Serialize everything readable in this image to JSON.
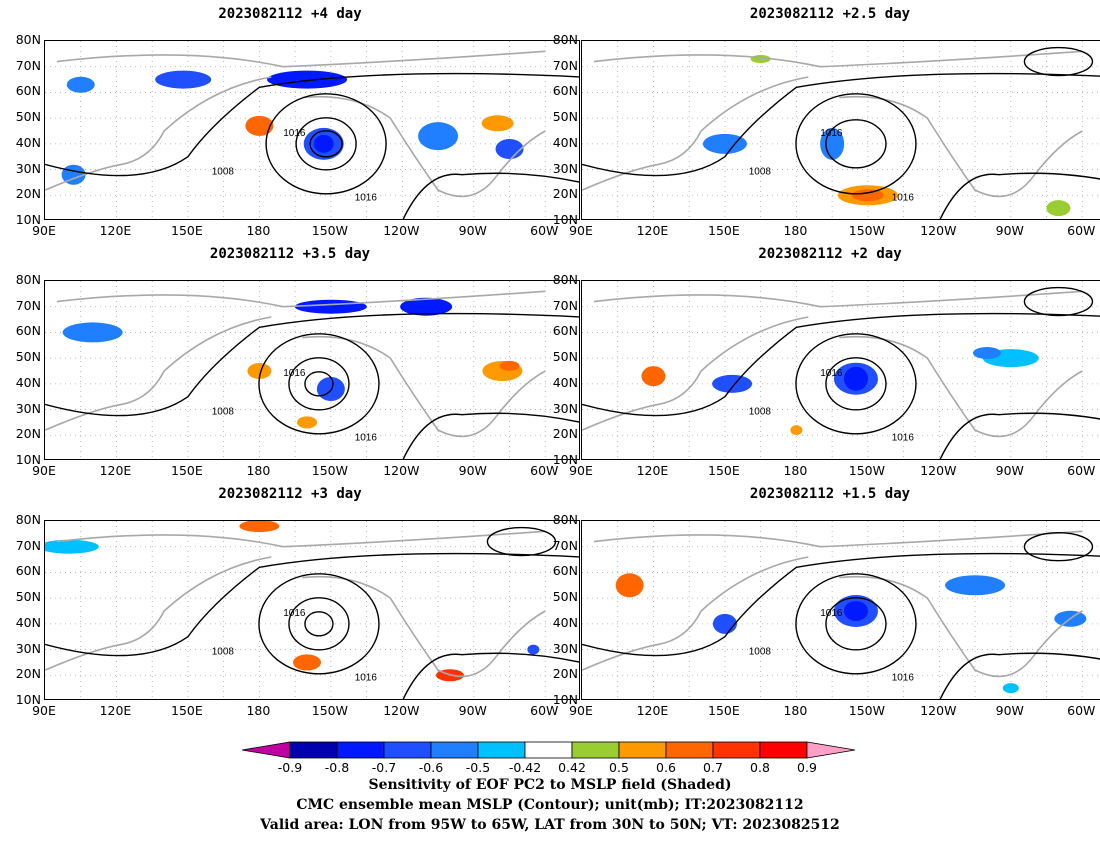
{
  "panels": [
    {
      "title": "2023082112  +4 day"
    },
    {
      "title": "2023082112  +2.5 day"
    },
    {
      "title": "2023082112  +3.5 day"
    },
    {
      "title": "2023082112  +2 day"
    },
    {
      "title": "2023082112  +3 day"
    },
    {
      "title": "2023082112  +1.5 day"
    }
  ],
  "axes": {
    "y_ticks": [
      "80N",
      "70N",
      "60N",
      "50N",
      "40N",
      "30N",
      "20N",
      "10N"
    ],
    "x_ticks": [
      "90E",
      "120E",
      "150E",
      "180",
      "150W",
      "120W",
      "90W",
      "60W"
    ]
  },
  "contour_labels": [
    "1008",
    "1016"
  ],
  "colorbar": {
    "colors": [
      "#0000b0",
      "#0019ff",
      "#1f4fff",
      "#1f7fff",
      "#00c0ff",
      "#ffffff",
      "#9acd32",
      "#ff9900",
      "#ff6600",
      "#ff3300",
      "#ff0000"
    ],
    "end_low": "#c000a0",
    "end_high": "#ffa0c8",
    "labels": [
      "-0.9",
      "-0.8",
      "-0.7",
      "-0.6",
      "-0.5",
      "-0.42",
      "0.42",
      "0.5",
      "0.6",
      "0.7",
      "0.8",
      "0.9"
    ]
  },
  "caption": {
    "line1": "Sensitivity of EOF PC2 to MSLP field (Shaded)",
    "line2": "CMC ensemble mean MSLP (Contour); unit(mb); IT:2023082112",
    "line3": "Valid area: LON from 95W to 65W, LAT from 30N to 50N; VT: 2023082512"
  }
}
